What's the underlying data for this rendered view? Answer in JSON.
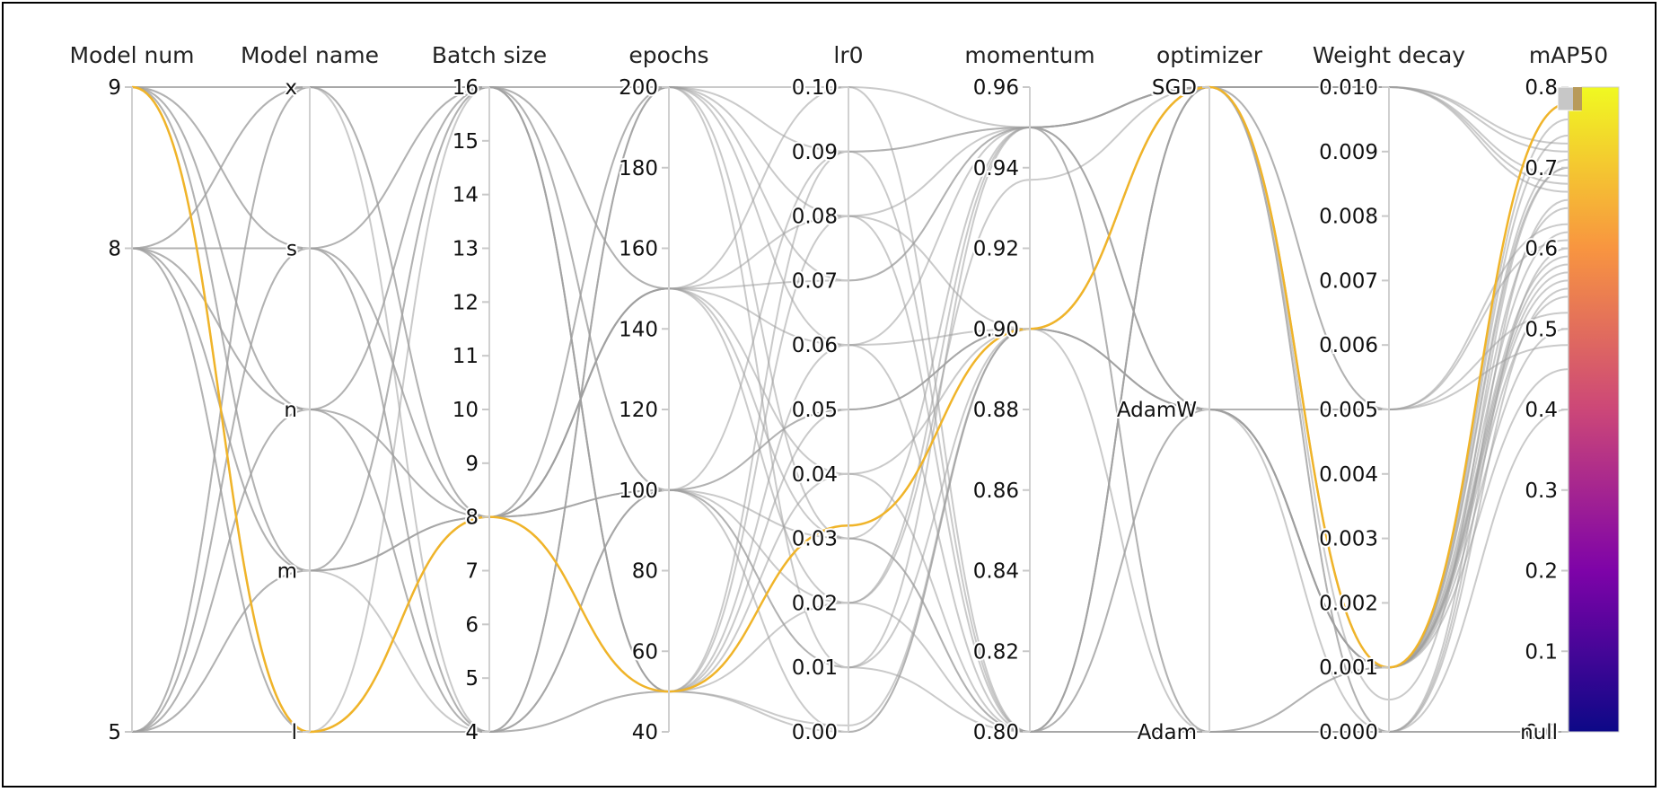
{
  "chart_data": {
    "type": "parallel_coordinates",
    "title": "",
    "axes": [
      {
        "key": "model_num",
        "label": "Model num",
        "kind": "numeric",
        "range": [
          5,
          9
        ],
        "ticks": [
          "9",
          "8",
          "5"
        ],
        "tick_values": [
          9,
          8,
          5
        ]
      },
      {
        "key": "model_name",
        "label": "Model name",
        "kind": "categorical",
        "categories": [
          "x",
          "s",
          "n",
          "m",
          "l"
        ]
      },
      {
        "key": "batch_size",
        "label": "Batch size",
        "kind": "numeric",
        "range": [
          4,
          16
        ],
        "ticks": [
          "16",
          "15",
          "14",
          "13",
          "12",
          "11",
          "10",
          "9",
          "8",
          "7",
          "6",
          "5",
          "4"
        ],
        "tick_values": [
          16,
          15,
          14,
          13,
          12,
          11,
          10,
          9,
          8,
          7,
          6,
          5,
          4
        ]
      },
      {
        "key": "epochs",
        "label": "epochs",
        "kind": "numeric",
        "range": [
          40,
          200
        ],
        "ticks": [
          "200",
          "180",
          "160",
          "140",
          "120",
          "100",
          "80",
          "60",
          "40"
        ],
        "tick_values": [
          200,
          180,
          160,
          140,
          120,
          100,
          80,
          60,
          40
        ]
      },
      {
        "key": "lr0",
        "label": "lr0",
        "kind": "numeric",
        "range": [
          0,
          0.1
        ],
        "ticks": [
          "0.10",
          "0.09",
          "0.08",
          "0.07",
          "0.06",
          "0.05",
          "0.04",
          "0.03",
          "0.02",
          "0.01",
          "0.00"
        ],
        "tick_values": [
          0.1,
          0.09,
          0.08,
          0.07,
          0.06,
          0.05,
          0.04,
          0.03,
          0.02,
          0.01,
          0.0
        ]
      },
      {
        "key": "momentum",
        "label": "momentum",
        "kind": "numeric",
        "range": [
          0.8,
          0.96
        ],
        "ticks": [
          "0.96",
          "0.94",
          "0.92",
          "0.90",
          "0.88",
          "0.86",
          "0.84",
          "0.82",
          "0.80"
        ],
        "tick_values": [
          0.96,
          0.94,
          0.92,
          0.9,
          0.88,
          0.86,
          0.84,
          0.82,
          0.8
        ]
      },
      {
        "key": "optimizer",
        "label": "optimizer",
        "kind": "categorical",
        "categories": [
          "SGD",
          "AdamW",
          "Adam"
        ]
      },
      {
        "key": "weight_decay",
        "label": "Weight decay",
        "kind": "numeric",
        "range": [
          0,
          0.01
        ],
        "ticks": [
          "0.010",
          "0.009",
          "0.008",
          "0.007",
          "0.006",
          "0.005",
          "0.004",
          "0.003",
          "0.002",
          "0.001",
          "0.000"
        ],
        "tick_values": [
          0.01,
          0.009,
          0.008,
          0.007,
          0.006,
          0.005,
          0.004,
          0.003,
          0.002,
          0.001,
          0.0
        ]
      },
      {
        "key": "map50",
        "label": "mAP50",
        "kind": "numeric",
        "range": [
          0,
          0.8
        ],
        "ticks": [
          "0.8",
          "0.7",
          "0.6",
          "0.5",
          "0.4",
          "0.3",
          "0.2",
          "0.1",
          "0.0",
          "null"
        ],
        "tick_values": [
          0.8,
          0.7,
          0.6,
          0.5,
          0.4,
          0.3,
          0.2,
          0.1,
          0.0,
          null
        ]
      }
    ],
    "colorbar": {
      "label": "mAP50",
      "range": [
        0.0,
        0.8
      ],
      "colors": [
        "#0d0887",
        "#7e03a8",
        "#cc4778",
        "#f89540",
        "#f0f921"
      ]
    },
    "highlight_color": "#f0b429",
    "line_color": "#9e9e9e",
    "highlighted_run": {
      "model_num": 9,
      "model_name": "l",
      "batch_size": 8,
      "epochs": 50,
      "lr0": 0.032,
      "momentum": 0.9,
      "optimizer": "SGD",
      "weight_decay": 0.001,
      "map50": 0.78
    },
    "runs": [
      {
        "model_num": 9,
        "model_name": "x",
        "batch_size": 16,
        "epochs": 200,
        "lr0": 0.01,
        "momentum": 0.95,
        "optimizer": "SGD",
        "weight_decay": 0.01,
        "map50": 0.72
      },
      {
        "model_num": 9,
        "model_name": "s",
        "batch_size": 16,
        "epochs": 150,
        "lr0": 0.02,
        "momentum": 0.937,
        "optimizer": "SGD",
        "weight_decay": 0.0005,
        "map50": 0.7
      },
      {
        "model_num": 9,
        "model_name": "n",
        "batch_size": 8,
        "epochs": 100,
        "lr0": 0.05,
        "momentum": 0.9,
        "optimizer": "AdamW",
        "weight_decay": 0.001,
        "map50": 0.62
      },
      {
        "model_num": 9,
        "model_name": "m",
        "batch_size": 8,
        "epochs": 200,
        "lr0": 0.08,
        "momentum": 0.8,
        "optimizer": "Adam",
        "weight_decay": 0.0,
        "map50": 0.55
      },
      {
        "model_num": 9,
        "model_name": "l",
        "batch_size": 4,
        "epochs": 50,
        "lr0": 0.001,
        "momentum": 0.9,
        "optimizer": "SGD",
        "weight_decay": 0.001,
        "map50": 0.76
      },
      {
        "model_num": 9,
        "model_name": "x",
        "batch_size": 8,
        "epochs": 150,
        "lr0": 0.1,
        "momentum": 0.95,
        "optimizer": "AdamW",
        "weight_decay": 0.005,
        "map50": 0.48
      },
      {
        "model_num": 9,
        "model_name": "s",
        "batch_size": 4,
        "epochs": 100,
        "lr0": 0.03,
        "momentum": 0.8,
        "optimizer": "SGD",
        "weight_decay": 0.0,
        "map50": 0.66
      },
      {
        "model_num": 9,
        "model_name": "m",
        "batch_size": 16,
        "epochs": 50,
        "lr0": 0.06,
        "momentum": 0.9,
        "optimizer": "AdamW",
        "weight_decay": 0.001,
        "map50": 0.58
      },
      {
        "model_num": 9,
        "model_name": "n",
        "batch_size": 16,
        "epochs": 200,
        "lr0": 0.09,
        "momentum": 0.95,
        "optimizer": "SGD",
        "weight_decay": 0.01,
        "map50": 0.68
      },
      {
        "model_num": 9,
        "model_name": "l",
        "batch_size": 8,
        "epochs": 150,
        "lr0": 0.04,
        "momentum": 0.8,
        "optimizer": "Adam",
        "weight_decay": 0.0,
        "map50": null
      },
      {
        "model_num": 8,
        "model_name": "x",
        "batch_size": 16,
        "epochs": 100,
        "lr0": 0.01,
        "momentum": 0.9,
        "optimizer": "SGD",
        "weight_decay": 0.001,
        "map50": 0.71
      },
      {
        "model_num": 8,
        "model_name": "s",
        "batch_size": 8,
        "epochs": 200,
        "lr0": 0.07,
        "momentum": 0.95,
        "optimizer": "AdamW",
        "weight_decay": 0.005,
        "map50": 0.52
      },
      {
        "model_num": 8,
        "model_name": "n",
        "batch_size": 4,
        "epochs": 50,
        "lr0": 0.02,
        "momentum": 0.8,
        "optimizer": "SGD",
        "weight_decay": 0.0,
        "map50": 0.6
      },
      {
        "model_num": 8,
        "model_name": "m",
        "batch_size": 8,
        "epochs": 100,
        "lr0": 0.05,
        "momentum": 0.9,
        "optimizer": "Adam",
        "weight_decay": 0.001,
        "map50": 0.45
      },
      {
        "model_num": 8,
        "model_name": "l",
        "batch_size": 16,
        "epochs": 150,
        "lr0": 0.08,
        "momentum": 0.95,
        "optimizer": "SGD",
        "weight_decay": 0.01,
        "map50": 0.69
      },
      {
        "model_num": 8,
        "model_name": "x",
        "batch_size": 4,
        "epochs": 200,
        "lr0": 0.03,
        "momentum": 0.8,
        "optimizer": "AdamW",
        "weight_decay": 0.001,
        "map50": 0.57
      },
      {
        "model_num": 8,
        "model_name": "s",
        "batch_size": 16,
        "epochs": 50,
        "lr0": 0.0,
        "momentum": 0.9,
        "optimizer": "SGD",
        "weight_decay": 0.001,
        "map50": 0.74
      },
      {
        "model_num": 8,
        "model_name": "n",
        "batch_size": 8,
        "epochs": 150,
        "lr0": 0.06,
        "momentum": 0.95,
        "optimizer": "Adam",
        "weight_decay": 0.0,
        "map50": null
      },
      {
        "model_num": 8,
        "model_name": "m",
        "batch_size": 4,
        "epochs": 100,
        "lr0": 0.09,
        "momentum": 0.8,
        "optimizer": "SGD",
        "weight_decay": 0.005,
        "map50": 0.63
      },
      {
        "model_num": 8,
        "model_name": "l",
        "batch_size": 8,
        "epochs": 50,
        "lr0": 0.04,
        "momentum": 0.9,
        "optimizer": "AdamW",
        "weight_decay": 0.001,
        "map50": 0.59
      },
      {
        "model_num": 5,
        "model_name": "x",
        "batch_size": 8,
        "epochs": 100,
        "lr0": 0.02,
        "momentum": 0.95,
        "optimizer": "SGD",
        "weight_decay": 0.01,
        "map50": 0.67
      },
      {
        "model_num": 5,
        "model_name": "s",
        "batch_size": 4,
        "epochs": 200,
        "lr0": 0.1,
        "momentum": 0.8,
        "optimizer": "AdamW",
        "weight_decay": 0.0,
        "map50": 0.4
      },
      {
        "model_num": 5,
        "model_name": "n",
        "batch_size": 16,
        "epochs": 50,
        "lr0": 0.05,
        "momentum": 0.9,
        "optimizer": "SGD",
        "weight_decay": 0.001,
        "map50": 0.65
      },
      {
        "model_num": 5,
        "model_name": "m",
        "batch_size": 8,
        "epochs": 150,
        "lr0": 0.07,
        "momentum": 0.95,
        "optimizer": "Adam",
        "weight_decay": 0.001,
        "map50": 0.5
      },
      {
        "model_num": 5,
        "model_name": "l",
        "batch_size": 4,
        "epochs": 100,
        "lr0": 0.01,
        "momentum": 0.8,
        "optimizer": "SGD",
        "weight_decay": 0.005,
        "map50": 0.61
      },
      {
        "model_num": 5,
        "model_name": "x",
        "batch_size": 16,
        "epochs": 50,
        "lr0": 0.08,
        "momentum": 0.9,
        "optimizer": "AdamW",
        "weight_decay": 0.001,
        "map50": 0.54
      },
      {
        "model_num": 5,
        "model_name": "s",
        "batch_size": 8,
        "epochs": 150,
        "lr0": 0.03,
        "momentum": 0.95,
        "optimizer": "SGD",
        "weight_decay": 0.01,
        "map50": 0.73
      },
      {
        "model_num": 5,
        "model_name": "n",
        "batch_size": 4,
        "epochs": 200,
        "lr0": 0.06,
        "momentum": 0.8,
        "optimizer": "Adam",
        "weight_decay": 0.0,
        "map50": null
      },
      {
        "model_num": 5,
        "model_name": "m",
        "batch_size": 16,
        "epochs": 100,
        "lr0": 0.0,
        "momentum": 0.9,
        "optimizer": "SGD",
        "weight_decay": 0.001,
        "map50": 0.7
      },
      {
        "model_num": 5,
        "model_name": "l",
        "batch_size": 8,
        "epochs": 50,
        "lr0": 0.09,
        "momentum": 0.95,
        "optimizer": "AdamW",
        "weight_decay": 0.001,
        "map50": 0.56
      }
    ]
  }
}
